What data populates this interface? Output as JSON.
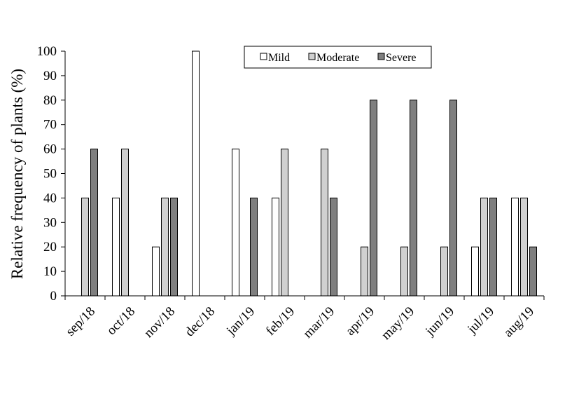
{
  "chart_data": {
    "type": "bar",
    "title": "",
    "xlabel": "",
    "ylabel": "Relative frequency of plants (%)",
    "ylim": [
      0,
      100
    ],
    "yticks": [
      0,
      10,
      20,
      30,
      40,
      50,
      60,
      70,
      80,
      90,
      100
    ],
    "grid": false,
    "legend_position": "top-center",
    "categories": [
      "sep/18",
      "oct/18",
      "nov/18",
      "dec/18",
      "jan/19",
      "feb/19",
      "mar/19",
      "apr/19",
      "may/19",
      "jun/19",
      "jul/19",
      "aug/19"
    ],
    "series": [
      {
        "name": "Mild",
        "color": "#ffffff",
        "values": [
          0,
          40,
          20,
          100,
          60,
          40,
          0,
          0,
          0,
          0,
          20,
          40
        ]
      },
      {
        "name": "Moderate",
        "color": "#d0d0d0",
        "values": [
          40,
          60,
          40,
          0,
          0,
          60,
          60,
          20,
          20,
          20,
          40,
          40
        ]
      },
      {
        "name": "Severe",
        "color": "#7f7f7f",
        "values": [
          60,
          0,
          40,
          0,
          40,
          0,
          40,
          80,
          80,
          80,
          40,
          20
        ]
      }
    ]
  }
}
